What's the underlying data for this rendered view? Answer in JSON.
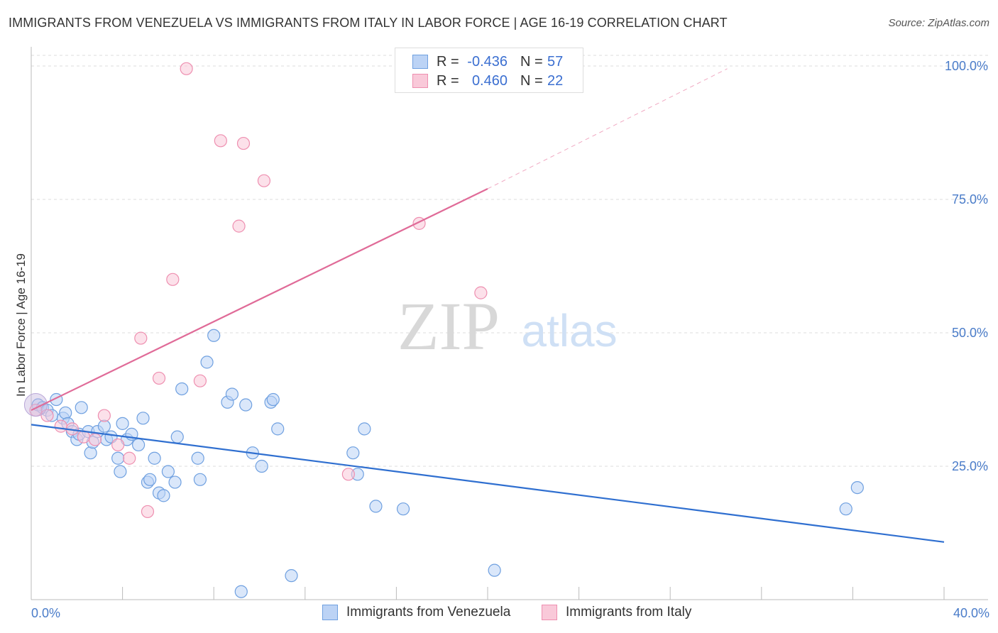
{
  "header": {
    "title": "IMMIGRANTS FROM VENEZUELA VS IMMIGRANTS FROM ITALY IN LABOR FORCE | AGE 16-19 CORRELATION CHART",
    "source": "Source: ZipAtlas.com"
  },
  "watermark": {
    "zip": "ZIP",
    "atlas": "atlas"
  },
  "legend": {
    "rows": [
      {
        "r_label": "R =",
        "r_value": "-0.436",
        "n_label": "N =",
        "n_value": "57",
        "color": "#6fa0e0",
        "fill": "#bcd3f5"
      },
      {
        "r_label": "R =",
        "r_value": "0.460",
        "n_label": "N =",
        "n_value": "22",
        "color": "#ee8fb0",
        "fill": "#f9c9d9"
      }
    ]
  },
  "bottom_legend": [
    {
      "label": "Immigrants from Venezuela",
      "color": "#6fa0e0",
      "fill": "#bcd3f5"
    },
    {
      "label": "Immigrants from Italy",
      "color": "#ee8fb0",
      "fill": "#f9c9d9"
    }
  ],
  "chart_data": {
    "type": "scatter",
    "xlabel": "",
    "ylabel": "In Labor Force | Age 16-19",
    "xlim": [
      0,
      40
    ],
    "ylim": [
      0,
      102
    ],
    "x_tick_labels": [
      {
        "value": 0,
        "label": "0.0%"
      },
      {
        "value": 40,
        "label": "40.0%"
      }
    ],
    "y_tick_labels": [
      {
        "value": 25,
        "label": "25.0%"
      },
      {
        "value": 50,
        "label": "50.0%"
      },
      {
        "value": 75,
        "label": "75.0%"
      },
      {
        "value": 100,
        "label": "100.0%"
      }
    ],
    "grid": true,
    "series": [
      {
        "name": "Immigrants from Venezuela",
        "color": "#6fa0e0",
        "fill": "#bcd3f5",
        "trend": {
          "x0": 0,
          "y0": 32.8,
          "x1": 40,
          "y1": 10.8,
          "dashed_to": null
        },
        "points": [
          [
            0.3,
            36.5
          ],
          [
            0.5,
            36.0
          ],
          [
            0.7,
            35.5
          ],
          [
            0.9,
            34.5
          ],
          [
            1.1,
            37.5
          ],
          [
            1.4,
            34.0
          ],
          [
            1.5,
            35.0
          ],
          [
            1.6,
            33.0
          ],
          [
            1.8,
            31.5
          ],
          [
            2.0,
            30.0
          ],
          [
            2.1,
            31.0
          ],
          [
            2.2,
            36.0
          ],
          [
            2.5,
            31.5
          ],
          [
            2.6,
            27.5
          ],
          [
            2.7,
            29.5
          ],
          [
            2.9,
            31.5
          ],
          [
            3.2,
            32.5
          ],
          [
            3.3,
            30.0
          ],
          [
            3.5,
            30.5
          ],
          [
            3.8,
            26.5
          ],
          [
            3.9,
            24.0
          ],
          [
            4.0,
            33.0
          ],
          [
            4.2,
            30.0
          ],
          [
            4.4,
            31.0
          ],
          [
            4.7,
            29.0
          ],
          [
            4.9,
            34.0
          ],
          [
            5.1,
            22.0
          ],
          [
            5.2,
            22.5
          ],
          [
            5.4,
            26.5
          ],
          [
            5.6,
            20.0
          ],
          [
            5.8,
            19.5
          ],
          [
            6.0,
            24.0
          ],
          [
            6.3,
            22.0
          ],
          [
            6.4,
            30.5
          ],
          [
            6.6,
            39.5
          ],
          [
            7.3,
            26.5
          ],
          [
            7.4,
            22.5
          ],
          [
            7.7,
            44.5
          ],
          [
            8.0,
            49.5
          ],
          [
            8.6,
            37.0
          ],
          [
            8.8,
            38.5
          ],
          [
            9.2,
            1.5
          ],
          [
            9.4,
            36.5
          ],
          [
            9.7,
            27.5
          ],
          [
            10.1,
            25.0
          ],
          [
            10.5,
            37.0
          ],
          [
            10.6,
            37.5
          ],
          [
            10.8,
            32.0
          ],
          [
            11.4,
            4.5
          ],
          [
            14.1,
            27.5
          ],
          [
            14.3,
            23.5
          ],
          [
            14.6,
            32.0
          ],
          [
            15.1,
            17.5
          ],
          [
            16.3,
            17.0
          ],
          [
            20.3,
            5.5
          ],
          [
            35.7,
            17.0
          ],
          [
            36.2,
            21.0
          ]
        ]
      },
      {
        "name": "Immigrants from Italy",
        "color": "#ee8fb0",
        "fill": "#f9c9d9",
        "trend": {
          "x0": 0,
          "y0": 35.5,
          "x1": 20.0,
          "y1": 77.0,
          "dashed_to": {
            "x": 30.5,
            "y": 99.5
          }
        },
        "points": [
          [
            0.2,
            35.5
          ],
          [
            0.7,
            34.5
          ],
          [
            1.3,
            32.5
          ],
          [
            1.8,
            32.0
          ],
          [
            2.3,
            30.5
          ],
          [
            2.8,
            30.0
          ],
          [
            3.2,
            34.5
          ],
          [
            3.8,
            29.0
          ],
          [
            4.3,
            26.5
          ],
          [
            4.8,
            49.0
          ],
          [
            5.1,
            16.5
          ],
          [
            5.6,
            41.5
          ],
          [
            6.2,
            60.0
          ],
          [
            6.8,
            99.5
          ],
          [
            7.4,
            41.0
          ],
          [
            8.3,
            86.0
          ],
          [
            9.1,
            70.0
          ],
          [
            9.3,
            85.5
          ],
          [
            10.2,
            78.5
          ],
          [
            13.9,
            23.5
          ],
          [
            17.0,
            70.5
          ],
          [
            19.7,
            57.5
          ]
        ]
      }
    ]
  }
}
